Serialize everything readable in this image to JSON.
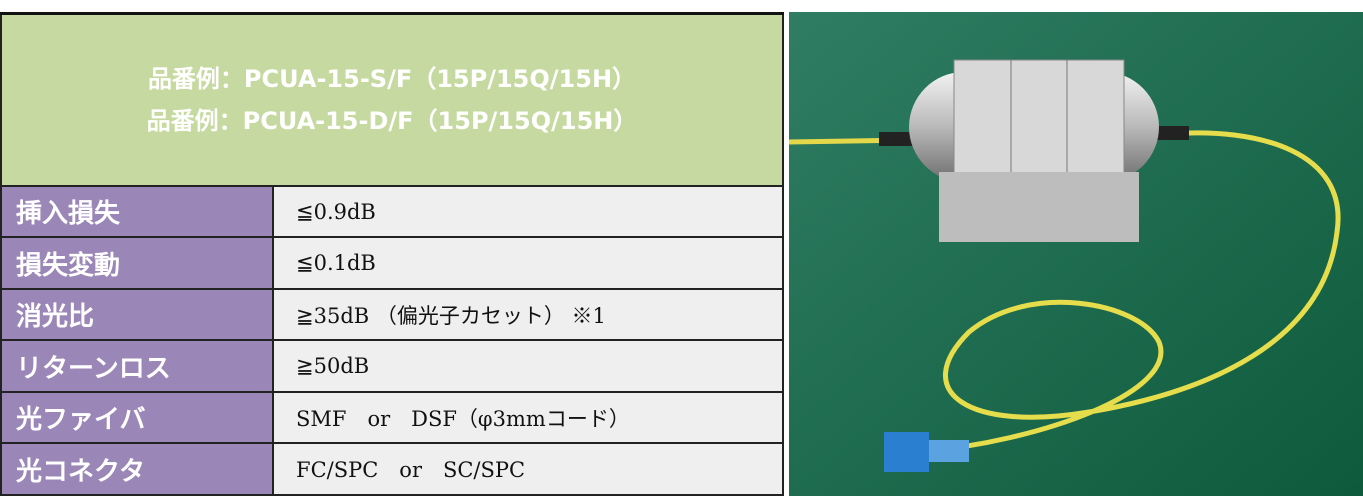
{
  "header": {
    "lines": [
      "品番例：PCUA-15-S/F（15P/15Q/15H）",
      "品番例：PCUA-15-D/F（15P/15Q/15H）"
    ]
  },
  "table": {
    "rows": [
      [
        "挿入損失",
        "≦0.9dB"
      ],
      [
        "損失変動",
        "≦0.1dB"
      ],
      [
        "消光比",
        "≧35dB （偏光子カセット） ※1"
      ],
      [
        "リターンロス",
        "≧50dB"
      ],
      [
        "光ファイバ",
        "SMF　or　DSF（φ3mmコード）"
      ],
      [
        "光コネクタ",
        "FC/SPC　or　SC/SPC"
      ]
    ]
  }
}
